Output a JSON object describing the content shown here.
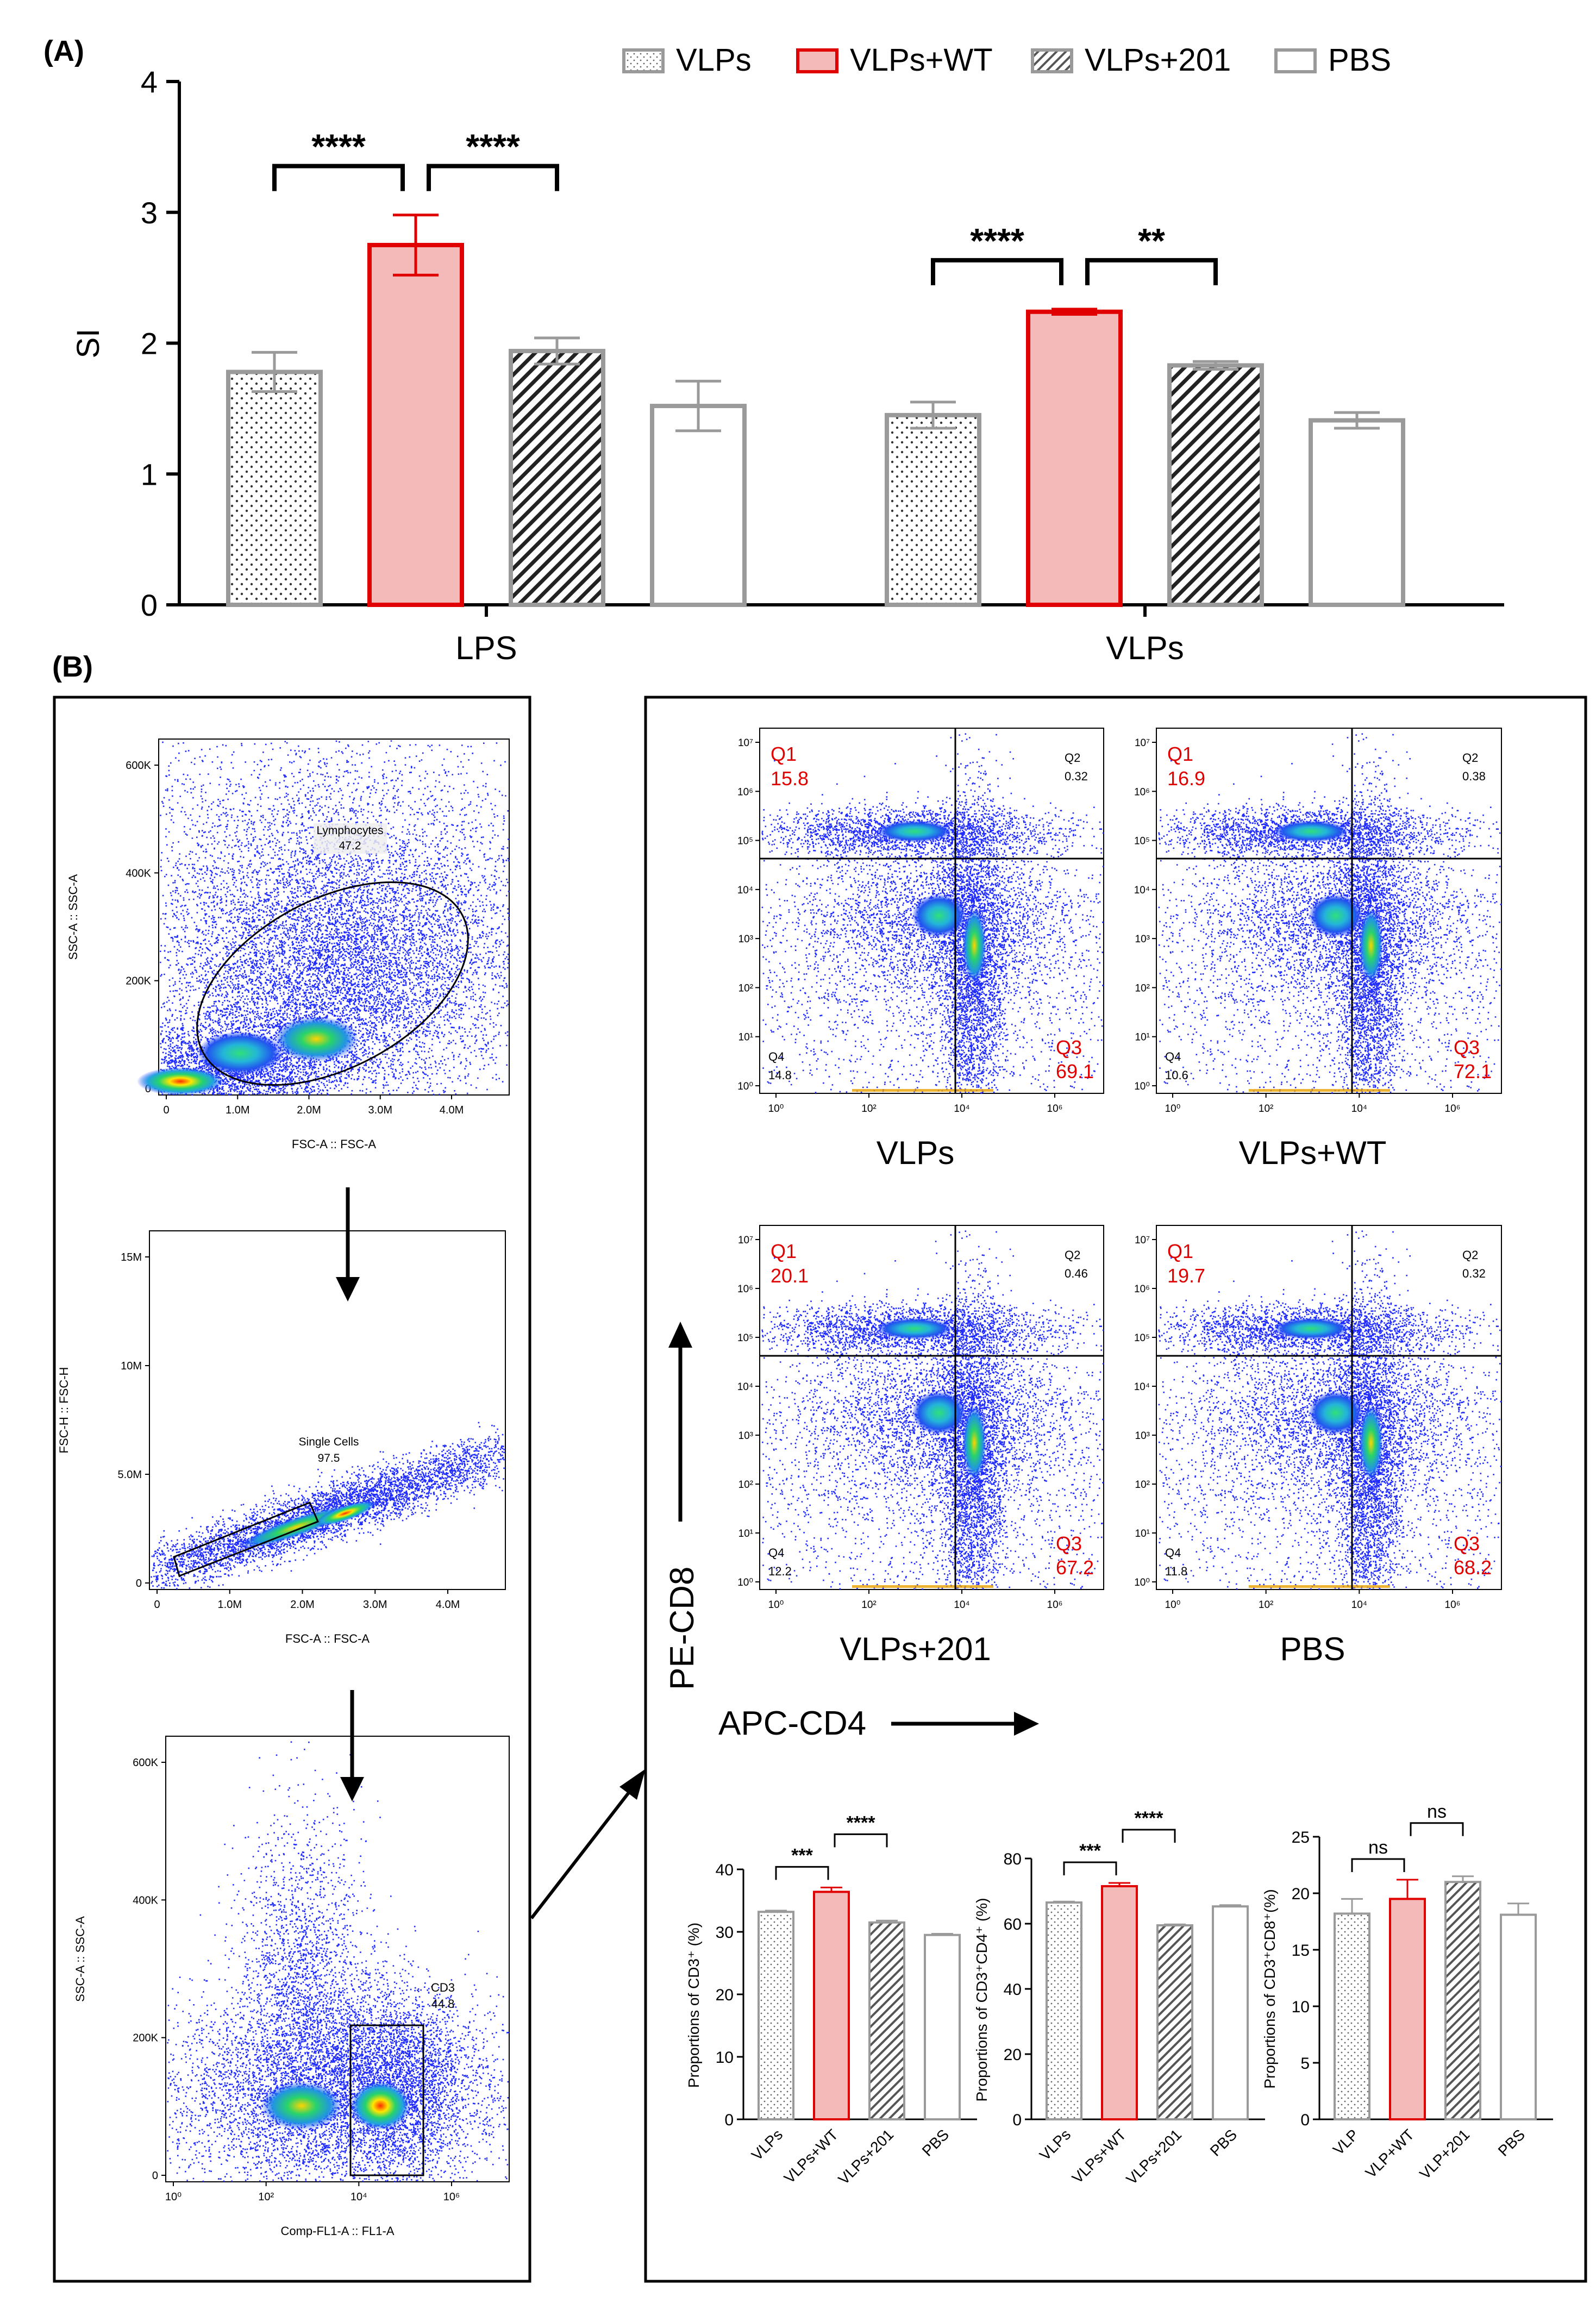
{
  "panel_a": {
    "label": "(A)",
    "chart_data": {
      "type": "bar",
      "title": "",
      "xlabel": "",
      "ylabel": "SI",
      "ylim": [
        0,
        4
      ],
      "yticks": [
        "0",
        "1",
        "2",
        "3",
        "4"
      ],
      "categories": [
        "LPS",
        "VLPs"
      ],
      "legend_position": "top-right",
      "series": [
        {
          "name": "VLPs",
          "pattern": "dots",
          "color": "#9a9a9a",
          "values": [
            1.78,
            1.45
          ],
          "errors": [
            0.15,
            0.1
          ]
        },
        {
          "name": "VLPs+WT",
          "pattern": "solid-fill",
          "color": "#e00000",
          "fill": "#f4b9b9",
          "values": [
            2.75,
            2.24
          ],
          "errors": [
            0.23,
            0.02
          ]
        },
        {
          "name": "VLPs+201",
          "pattern": "hatch",
          "color": "#9a9a9a",
          "values": [
            1.94,
            1.83
          ],
          "errors": [
            0.1,
            0.03
          ]
        },
        {
          "name": "PBS",
          "pattern": "empty",
          "color": "#9a9a9a",
          "values": [
            1.52,
            1.41
          ],
          "errors": [
            0.19,
            0.06
          ]
        }
      ],
      "annotations": [
        {
          "group": "LPS",
          "from": "VLPs",
          "to": "VLPs+WT",
          "text": "****"
        },
        {
          "group": "LPS",
          "from": "VLPs+WT",
          "to": "VLPs+201",
          "text": "****"
        },
        {
          "group": "VLPs",
          "from": "VLPs",
          "to": "VLPs+WT",
          "text": "****"
        },
        {
          "group": "VLPs",
          "from": "VLPs+WT",
          "to": "VLPs+201",
          "text": "**"
        }
      ]
    }
  },
  "panel_b": {
    "label": "(B)",
    "gating": [
      {
        "ylabel": "SSC-A :: SSC-A",
        "xlabel": "FSC-A :: FSC-A",
        "yticks": [
          "0",
          "200K",
          "400K",
          "600K"
        ],
        "xticks": [
          "0",
          "1.0M",
          "2.0M",
          "3.0M",
          "4.0M"
        ],
        "gate_name": "Lymphocytes",
        "gate_value": "47.2"
      },
      {
        "ylabel": "FSC-H :: FSC-H",
        "xlabel": "FSC-A :: FSC-A",
        "yticks": [
          "0",
          "5.0M",
          "10M",
          "15M"
        ],
        "xticks": [
          "0",
          "1.0M",
          "2.0M",
          "3.0M",
          "4.0M"
        ],
        "gate_name": "Single Cells",
        "gate_value": "97.5"
      },
      {
        "ylabel": "SSC-A :: SSC-A",
        "xlabel": "Comp-FL1-A :: FL1-A",
        "yticks": [
          "0",
          "200K",
          "400K",
          "600K"
        ],
        "xticks": [
          "10⁰",
          "10²",
          "10⁴",
          "10⁶"
        ],
        "gate_name": "CD3",
        "gate_value": "44.8"
      }
    ],
    "quadrants": [
      {
        "title": "VLPs",
        "q1_label": "Q1",
        "q1": "15.8",
        "q2_label": "Q2",
        "q2": "0.32",
        "q3_label": "Q3",
        "q3": "69.1",
        "q4_label": "Q4",
        "q4": "14.8"
      },
      {
        "title": "VLPs+WT",
        "q1_label": "Q1",
        "q1": "16.9",
        "q2_label": "Q2",
        "q2": "0.38",
        "q3_label": "Q3",
        "q3": "72.1",
        "q4_label": "Q4",
        "q4": "10.6"
      },
      {
        "title": "VLPs+201",
        "q1_label": "Q1",
        "q1": "20.1",
        "q2_label": "Q2",
        "q2": "0.46",
        "q3_label": "Q3",
        "q3": "67.2",
        "q4_label": "Q4",
        "q4": "12.2"
      },
      {
        "title": "PBS",
        "q1_label": "Q1",
        "q1": "19.7",
        "q2_label": "Q2",
        "q2": "0.32",
        "q3_label": "Q3",
        "q3": "68.2",
        "q4_label": "Q4",
        "q4": "11.8"
      }
    ],
    "quadrant_axis": {
      "yticks": [
        "10⁰",
        "10¹",
        "10²",
        "10³",
        "10⁴",
        "10⁵",
        "10⁶",
        "10⁷"
      ],
      "xticks": [
        "10⁰",
        "10²",
        "10⁴",
        "10⁶"
      ]
    },
    "y_axis_label": "PE-CD8",
    "x_axis_label": "APC-CD4",
    "bar_charts": [
      {
        "type": "bar",
        "ylabel": "Proportions of CD3⁺ (%)",
        "ylim": [
          0,
          40
        ],
        "yticks": [
          "0",
          "10",
          "20",
          "30",
          "40"
        ],
        "categories": [
          "VLPs",
          "VLPs+WT",
          "VLPs+201",
          "PBS"
        ],
        "values": [
          33.2,
          36.4,
          31.5,
          29.5
        ],
        "errors": [
          0.2,
          0.7,
          0.3,
          0.2
        ],
        "annotations": [
          {
            "from": 0,
            "to": 1,
            "text": "***"
          },
          {
            "from": 1,
            "to": 2,
            "text": "****"
          }
        ]
      },
      {
        "type": "bar",
        "ylabel": "Proportions of CD3⁺CD4⁺ (%)",
        "ylim": [
          0,
          80
        ],
        "yticks": [
          "0",
          "20",
          "40",
          "60",
          "80"
        ],
        "categories": [
          "VLPs",
          "VLPs+WT",
          "VLPs+201",
          "PBS"
        ],
        "values": [
          66.5,
          71.5,
          59.5,
          65.3
        ],
        "errors": [
          0.3,
          1.0,
          0.3,
          0.4
        ],
        "annotations": [
          {
            "from": 0,
            "to": 1,
            "text": "***"
          },
          {
            "from": 1,
            "to": 2,
            "text": "****"
          }
        ]
      },
      {
        "type": "bar",
        "ylabel": "Proportions of CD3⁺CD8⁺(%)",
        "ylim": [
          0,
          25
        ],
        "yticks": [
          "0",
          "5",
          "10",
          "15",
          "20",
          "25"
        ],
        "categories": [
          "VLP",
          "VLP+WT",
          "VLP+201",
          "PBS"
        ],
        "values": [
          18.2,
          19.5,
          21.0,
          18.1
        ],
        "errors": [
          1.3,
          1.7,
          0.5,
          1.0
        ],
        "annotations": [
          {
            "from": 0,
            "to": 1,
            "text": "ns"
          },
          {
            "from": 1,
            "to": 2,
            "text": "ns"
          }
        ]
      }
    ]
  },
  "colors": {
    "red": "#e00000",
    "pink": "#f4b9b9",
    "gray": "#9a9a9a",
    "dark": "#222222"
  }
}
